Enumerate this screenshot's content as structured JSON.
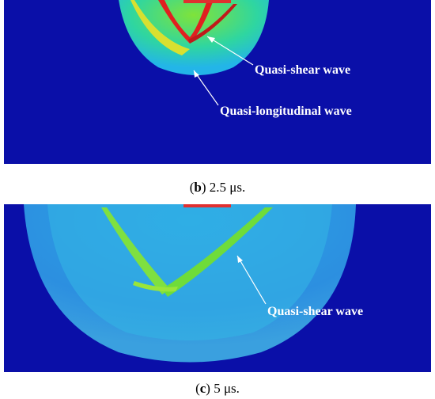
{
  "panels": [
    {
      "caption": {
        "open": "(",
        "label": "b",
        "rest": ") 2.5 μs."
      },
      "annotations": [
        "Quasi-shear wave",
        "Quasi-longitudinal wave"
      ]
    },
    {
      "caption": {
        "open": "(",
        "label": "c",
        "rest": ") 5 μs."
      },
      "annotations": [
        "Quasi-shear wave"
      ]
    }
  ]
}
